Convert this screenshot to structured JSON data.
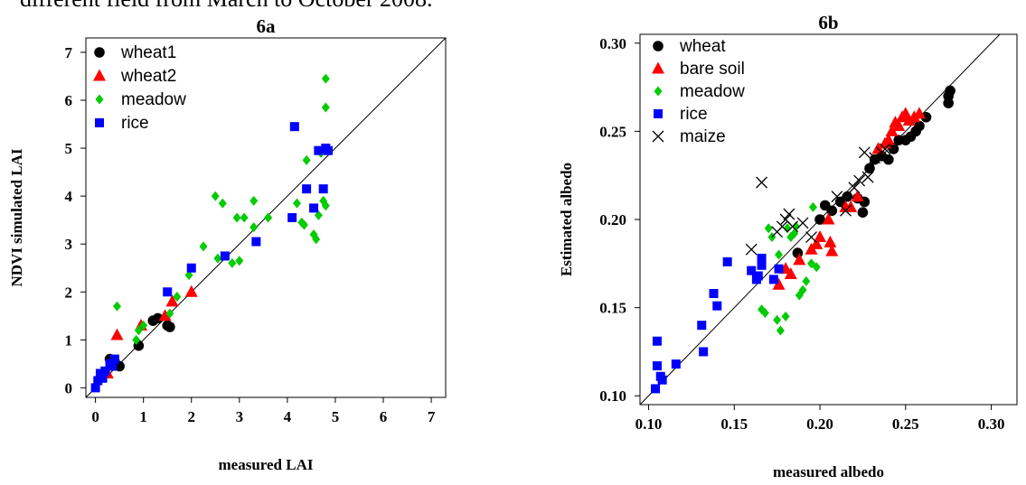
{
  "caption_fragment": "different field from March to October 2008.",
  "colors": {
    "black": "#000000",
    "red": "#ff0000",
    "green": "#00cc00",
    "blue": "#0000ff"
  },
  "chart_data": [
    {
      "type": "scatter",
      "title": "6a",
      "xlabel": "measured LAI",
      "ylabel": "NDVI simulated LAI",
      "xlim": [
        -0.2,
        7.3
      ],
      "ylim": [
        -0.2,
        7.3
      ],
      "xticks": [
        0,
        1,
        2,
        3,
        4,
        5,
        6,
        7
      ],
      "yticks": [
        0,
        1,
        2,
        3,
        4,
        5,
        6,
        7
      ],
      "xtick_labels": [
        "0",
        "1",
        "2",
        "3",
        "4",
        "5",
        "6",
        "7"
      ],
      "ytick_labels": [
        "0",
        "1",
        "2",
        "3",
        "4",
        "5",
        "6",
        "7"
      ],
      "one_to_one_line": true,
      "grid": false,
      "legend": "top-left",
      "series": [
        {
          "name": "wheat1",
          "marker": "circle",
          "color": "#000000",
          "points": [
            [
              0.3,
              0.6
            ],
            [
              0.4,
              0.55
            ],
            [
              0.5,
              0.45
            ],
            [
              0.9,
              0.88
            ],
            [
              1.2,
              1.4
            ],
            [
              1.3,
              1.45
            ],
            [
              1.5,
              1.3
            ],
            [
              1.55,
              1.27
            ]
          ]
        },
        {
          "name": "wheat2",
          "marker": "triangle",
          "color": "#ff0000",
          "points": [
            [
              0.25,
              0.3
            ],
            [
              0.45,
              1.1
            ],
            [
              0.95,
              1.3
            ],
            [
              1.45,
              1.5
            ],
            [
              1.6,
              1.8
            ],
            [
              2.0,
              2.0
            ]
          ]
        },
        {
          "name": "meadow",
          "marker": "diamond",
          "color": "#00cc00",
          "points": [
            [
              0.45,
              1.7
            ],
            [
              0.85,
              1.0
            ],
            [
              0.9,
              1.2
            ],
            [
              1.0,
              1.3
            ],
            [
              1.55,
              1.55
            ],
            [
              1.7,
              1.9
            ],
            [
              1.95,
              2.35
            ],
            [
              2.25,
              2.95
            ],
            [
              2.5,
              4.0
            ],
            [
              2.55,
              2.7
            ],
            [
              2.65,
              3.85
            ],
            [
              2.85,
              2.6
            ],
            [
              2.95,
              3.55
            ],
            [
              3.0,
              2.65
            ],
            [
              3.1,
              3.55
            ],
            [
              3.3,
              3.9
            ],
            [
              3.3,
              3.35
            ],
            [
              3.6,
              3.55
            ],
            [
              4.2,
              3.85
            ],
            [
              4.3,
              3.45
            ],
            [
              4.35,
              3.4
            ],
            [
              4.4,
              4.75
            ],
            [
              4.55,
              3.2
            ],
            [
              4.6,
              3.1
            ],
            [
              4.65,
              3.6
            ],
            [
              4.7,
              4.9
            ],
            [
              4.75,
              3.9
            ],
            [
              4.8,
              3.8
            ],
            [
              4.8,
              5.85
            ],
            [
              4.8,
              6.45
            ]
          ]
        },
        {
          "name": "rice",
          "marker": "square",
          "color": "#0000ff",
          "points": [
            [
              0.0,
              0.0
            ],
            [
              0.05,
              0.15
            ],
            [
              0.1,
              0.3
            ],
            [
              0.15,
              0.2
            ],
            [
              0.2,
              0.35
            ],
            [
              0.3,
              0.5
            ],
            [
              0.35,
              0.45
            ],
            [
              0.4,
              0.6
            ],
            [
              1.5,
              2.0
            ],
            [
              2.0,
              2.5
            ],
            [
              2.7,
              2.75
            ],
            [
              3.35,
              3.05
            ],
            [
              4.1,
              3.55
            ],
            [
              4.15,
              5.45
            ],
            [
              4.4,
              4.15
            ],
            [
              4.55,
              3.75
            ],
            [
              4.65,
              4.95
            ],
            [
              4.75,
              4.15
            ],
            [
              4.8,
              5.0
            ],
            [
              4.85,
              4.95
            ]
          ]
        }
      ]
    },
    {
      "type": "scatter",
      "title": "6b",
      "xlabel": "measured albedo",
      "ylabel": "Estimated albedo",
      "xlim": [
        0.095,
        0.315
      ],
      "ylim": [
        0.095,
        0.305
      ],
      "xticks": [
        0.1,
        0.15,
        0.2,
        0.25,
        0.3
      ],
      "yticks": [
        0.1,
        0.15,
        0.2,
        0.25,
        0.3
      ],
      "xtick_labels": [
        "0.10",
        "0.15",
        "0.20",
        "0.25",
        "0.30"
      ],
      "ytick_labels": [
        "0.10",
        "0.15",
        "0.20",
        "0.25",
        "0.30"
      ],
      "one_to_one_line": true,
      "grid": false,
      "legend": "top-left",
      "series": [
        {
          "name": "wheat",
          "marker": "circle",
          "color": "#000000",
          "points": [
            [
              0.187,
              0.181
            ],
            [
              0.2,
              0.2
            ],
            [
              0.203,
              0.208
            ],
            [
              0.207,
              0.205
            ],
            [
              0.212,
              0.21
            ],
            [
              0.216,
              0.213
            ],
            [
              0.222,
              0.212
            ],
            [
              0.225,
              0.204
            ],
            [
              0.226,
              0.21
            ],
            [
              0.229,
              0.229
            ],
            [
              0.232,
              0.234
            ],
            [
              0.236,
              0.236
            ],
            [
              0.24,
              0.234
            ],
            [
              0.243,
              0.24
            ],
            [
              0.246,
              0.245
            ],
            [
              0.25,
              0.245
            ],
            [
              0.253,
              0.247
            ],
            [
              0.256,
              0.25
            ],
            [
              0.258,
              0.253
            ],
            [
              0.262,
              0.258
            ],
            [
              0.275,
              0.27
            ],
            [
              0.276,
              0.273
            ],
            [
              0.275,
              0.266
            ]
          ]
        },
        {
          "name": "bare soil",
          "marker": "triangle",
          "color": "#ff0000",
          "points": [
            [
              0.176,
              0.163
            ],
            [
              0.18,
              0.172
            ],
            [
              0.183,
              0.169
            ],
            [
              0.188,
              0.177
            ],
            [
              0.195,
              0.183
            ],
            [
              0.198,
              0.186
            ],
            [
              0.2,
              0.19
            ],
            [
              0.206,
              0.187
            ],
            [
              0.207,
              0.182
            ],
            [
              0.205,
              0.2
            ],
            [
              0.215,
              0.207
            ],
            [
              0.218,
              0.207
            ],
            [
              0.222,
              0.213
            ],
            [
              0.234,
              0.24
            ],
            [
              0.238,
              0.243
            ],
            [
              0.24,
              0.245
            ],
            [
              0.242,
              0.25
            ],
            [
              0.244,
              0.255
            ],
            [
              0.246,
              0.253
            ],
            [
              0.248,
              0.258
            ],
            [
              0.25,
              0.26
            ],
            [
              0.252,
              0.256
            ],
            [
              0.255,
              0.258
            ],
            [
              0.258,
              0.26
            ]
          ]
        },
        {
          "name": "meadow",
          "marker": "diamond",
          "color": "#00cc00",
          "points": [
            [
              0.166,
              0.149
            ],
            [
              0.168,
              0.147
            ],
            [
              0.17,
              0.195
            ],
            [
              0.172,
              0.19
            ],
            [
              0.175,
              0.143
            ],
            [
              0.177,
              0.137
            ],
            [
              0.18,
              0.145
            ],
            [
              0.183,
              0.19
            ],
            [
              0.185,
              0.192
            ],
            [
              0.186,
              0.196
            ],
            [
              0.188,
              0.157
            ],
            [
              0.19,
              0.16
            ],
            [
              0.192,
              0.165
            ],
            [
              0.195,
              0.175
            ],
            [
              0.196,
              0.207
            ],
            [
              0.198,
              0.173
            ],
            [
              0.176,
              0.18
            ],
            [
              0.181,
              0.195
            ]
          ]
        },
        {
          "name": "rice",
          "marker": "square",
          "color": "#0000ff",
          "points": [
            [
              0.104,
              0.104
            ],
            [
              0.105,
              0.117
            ],
            [
              0.105,
              0.131
            ],
            [
              0.107,
              0.111
            ],
            [
              0.108,
              0.109
            ],
            [
              0.116,
              0.118
            ],
            [
              0.131,
              0.14
            ],
            [
              0.132,
              0.125
            ],
            [
              0.138,
              0.158
            ],
            [
              0.14,
              0.151
            ],
            [
              0.146,
              0.176
            ],
            [
              0.16,
              0.171
            ],
            [
              0.163,
              0.166
            ],
            [
              0.164,
              0.168
            ],
            [
              0.166,
              0.178
            ],
            [
              0.166,
              0.174
            ],
            [
              0.173,
              0.166
            ],
            [
              0.176,
              0.172
            ]
          ]
        },
        {
          "name": "maize",
          "marker": "cross",
          "color": "#000000",
          "points": [
            [
              0.16,
              0.183
            ],
            [
              0.166,
              0.221
            ],
            [
              0.175,
              0.193
            ],
            [
              0.178,
              0.196
            ],
            [
              0.18,
              0.2
            ],
            [
              0.182,
              0.203
            ],
            [
              0.184,
              0.196
            ],
            [
              0.19,
              0.198
            ],
            [
              0.195,
              0.19
            ],
            [
              0.21,
              0.213
            ],
            [
              0.215,
              0.205
            ],
            [
              0.22,
              0.218
            ],
            [
              0.223,
              0.222
            ],
            [
              0.226,
              0.238
            ],
            [
              0.228,
              0.224
            ],
            [
              0.232,
              0.235
            ],
            [
              0.236,
              0.238
            ],
            [
              0.238,
              0.24
            ]
          ]
        }
      ]
    }
  ]
}
